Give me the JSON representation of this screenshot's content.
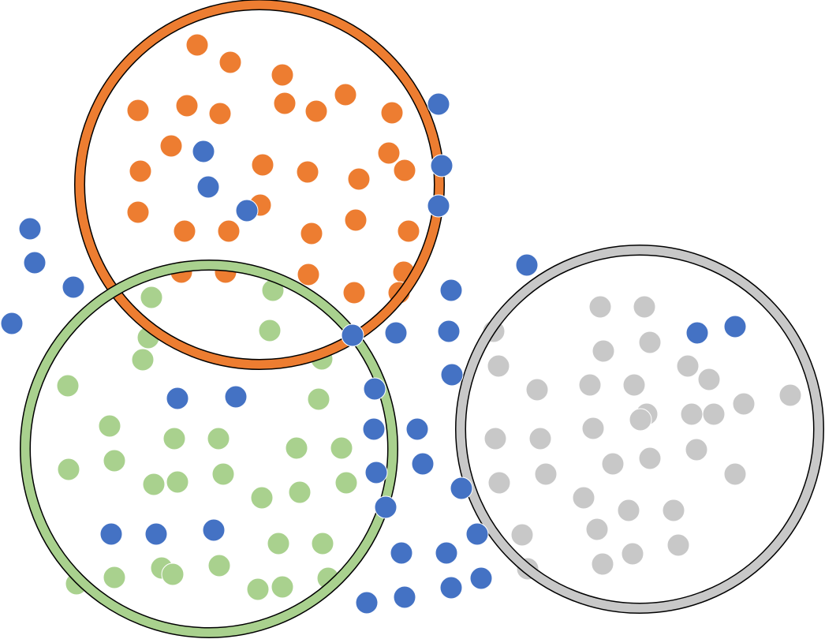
{
  "colors": {
    "orange": "#ED7D31",
    "blue": "#4472C4",
    "green": "#A9D18E",
    "gray": "#C8C8C8",
    "ring_outline": "#000000",
    "background": "#FFFFFF"
  },
  "clusters": [
    {
      "name": "orange-cluster",
      "color": "orange"
    },
    {
      "name": "green-cluster",
      "color": "green"
    },
    {
      "name": "gray-cluster",
      "color": "gray"
    }
  ]
}
